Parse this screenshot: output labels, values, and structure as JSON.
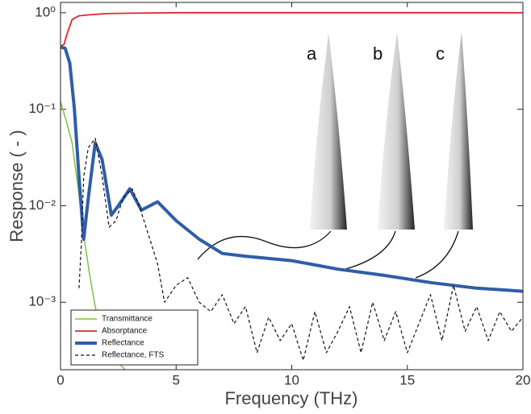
{
  "chart_data": {
    "type": "line",
    "xlabel": "Frequency (THz)",
    "ylabel": "Response ( - )",
    "xlim": [
      0,
      20
    ],
    "xticks": [
      0,
      5,
      10,
      15,
      20
    ],
    "ylim": [
      0.0002,
      1.28
    ],
    "log_y": true,
    "yticks": [
      {
        "value": 1,
        "label": "10⁰"
      },
      {
        "value": 0.1,
        "label": "10⁻¹"
      },
      {
        "value": 0.01,
        "label": "10⁻²"
      },
      {
        "value": 0.001,
        "label": "10⁻³"
      }
    ],
    "legend_position": "bottom-left",
    "annotations": [
      "a",
      "b",
      "c"
    ],
    "series": [
      {
        "name": "Transmittance",
        "color": "#7dc242",
        "linewidth": 1.5,
        "dashed": false,
        "x": [
          0,
          0.25,
          0.5,
          0.75,
          1,
          1.25,
          1.5,
          1.75,
          2,
          2.4,
          2.8
        ],
        "values": [
          0.12,
          0.075,
          0.045,
          0.016,
          0.005,
          0.002,
          0.0009,
          0.0005,
          0.00035,
          0.00025,
          0.0002
        ]
      },
      {
        "name": "Absorptance",
        "color": "#e2262c",
        "linewidth": 1.8,
        "dashed": false,
        "x": [
          0,
          0.15,
          0.3,
          0.5,
          0.8,
          1.2,
          2,
          3,
          5,
          10,
          15,
          20
        ],
        "values": [
          0.45,
          0.47,
          0.62,
          0.85,
          0.93,
          0.95,
          0.98,
          0.99,
          1.0,
          1.0,
          1.0,
          1.0
        ]
      },
      {
        "name": "Reflectance",
        "color": "#2f5da8",
        "linewidth": 4,
        "dashed": false,
        "x": [
          0,
          0.2,
          0.4,
          0.6,
          0.8,
          1.0,
          1.2,
          1.5,
          1.8,
          2.2,
          2.5,
          3,
          3.5,
          4.2,
          5,
          6,
          7,
          8,
          10,
          12,
          14,
          16,
          18,
          20
        ],
        "values": [
          0.44,
          0.43,
          0.3,
          0.1,
          0.02,
          0.0045,
          0.012,
          0.045,
          0.03,
          0.008,
          0.01,
          0.015,
          0.009,
          0.011,
          0.007,
          0.0045,
          0.0032,
          0.003,
          0.0027,
          0.0022,
          0.0019,
          0.0016,
          0.0014,
          0.0013
        ]
      },
      {
        "name": "Reflectance, FTS",
        "color": "#111111",
        "linewidth": 1.2,
        "dashed": true,
        "x": [
          0.8,
          0.9,
          1.0,
          1.2,
          1.5,
          1.8,
          2.1,
          2.4,
          2.7,
          3.1,
          3.4,
          3.7,
          4.2,
          4.5,
          5,
          5.5,
          6,
          6.5,
          7,
          7.5,
          8,
          8.5,
          9,
          9.5,
          10,
          10.5,
          11,
          11.5,
          12,
          12.5,
          13,
          13.5,
          14,
          14.5,
          15,
          15.5,
          16,
          16.5,
          17,
          17.5,
          18,
          18.5,
          19,
          19.5,
          20
        ],
        "values": [
          0.0014,
          0.004,
          0.02,
          0.04,
          0.05,
          0.02,
          0.006,
          0.007,
          0.012,
          0.015,
          0.01,
          0.006,
          0.0025,
          0.001,
          0.0015,
          0.0018,
          0.001,
          0.0008,
          0.0012,
          0.0006,
          0.0009,
          0.0003,
          0.0007,
          0.0004,
          0.0006,
          0.00025,
          0.0008,
          0.0003,
          0.0005,
          0.0009,
          0.0003,
          0.001,
          0.0004,
          0.0008,
          0.0003,
          0.0006,
          0.0012,
          0.0004,
          0.0015,
          0.0005,
          0.0009,
          0.0004,
          0.0008,
          0.0005,
          0.0007
        ]
      }
    ]
  }
}
